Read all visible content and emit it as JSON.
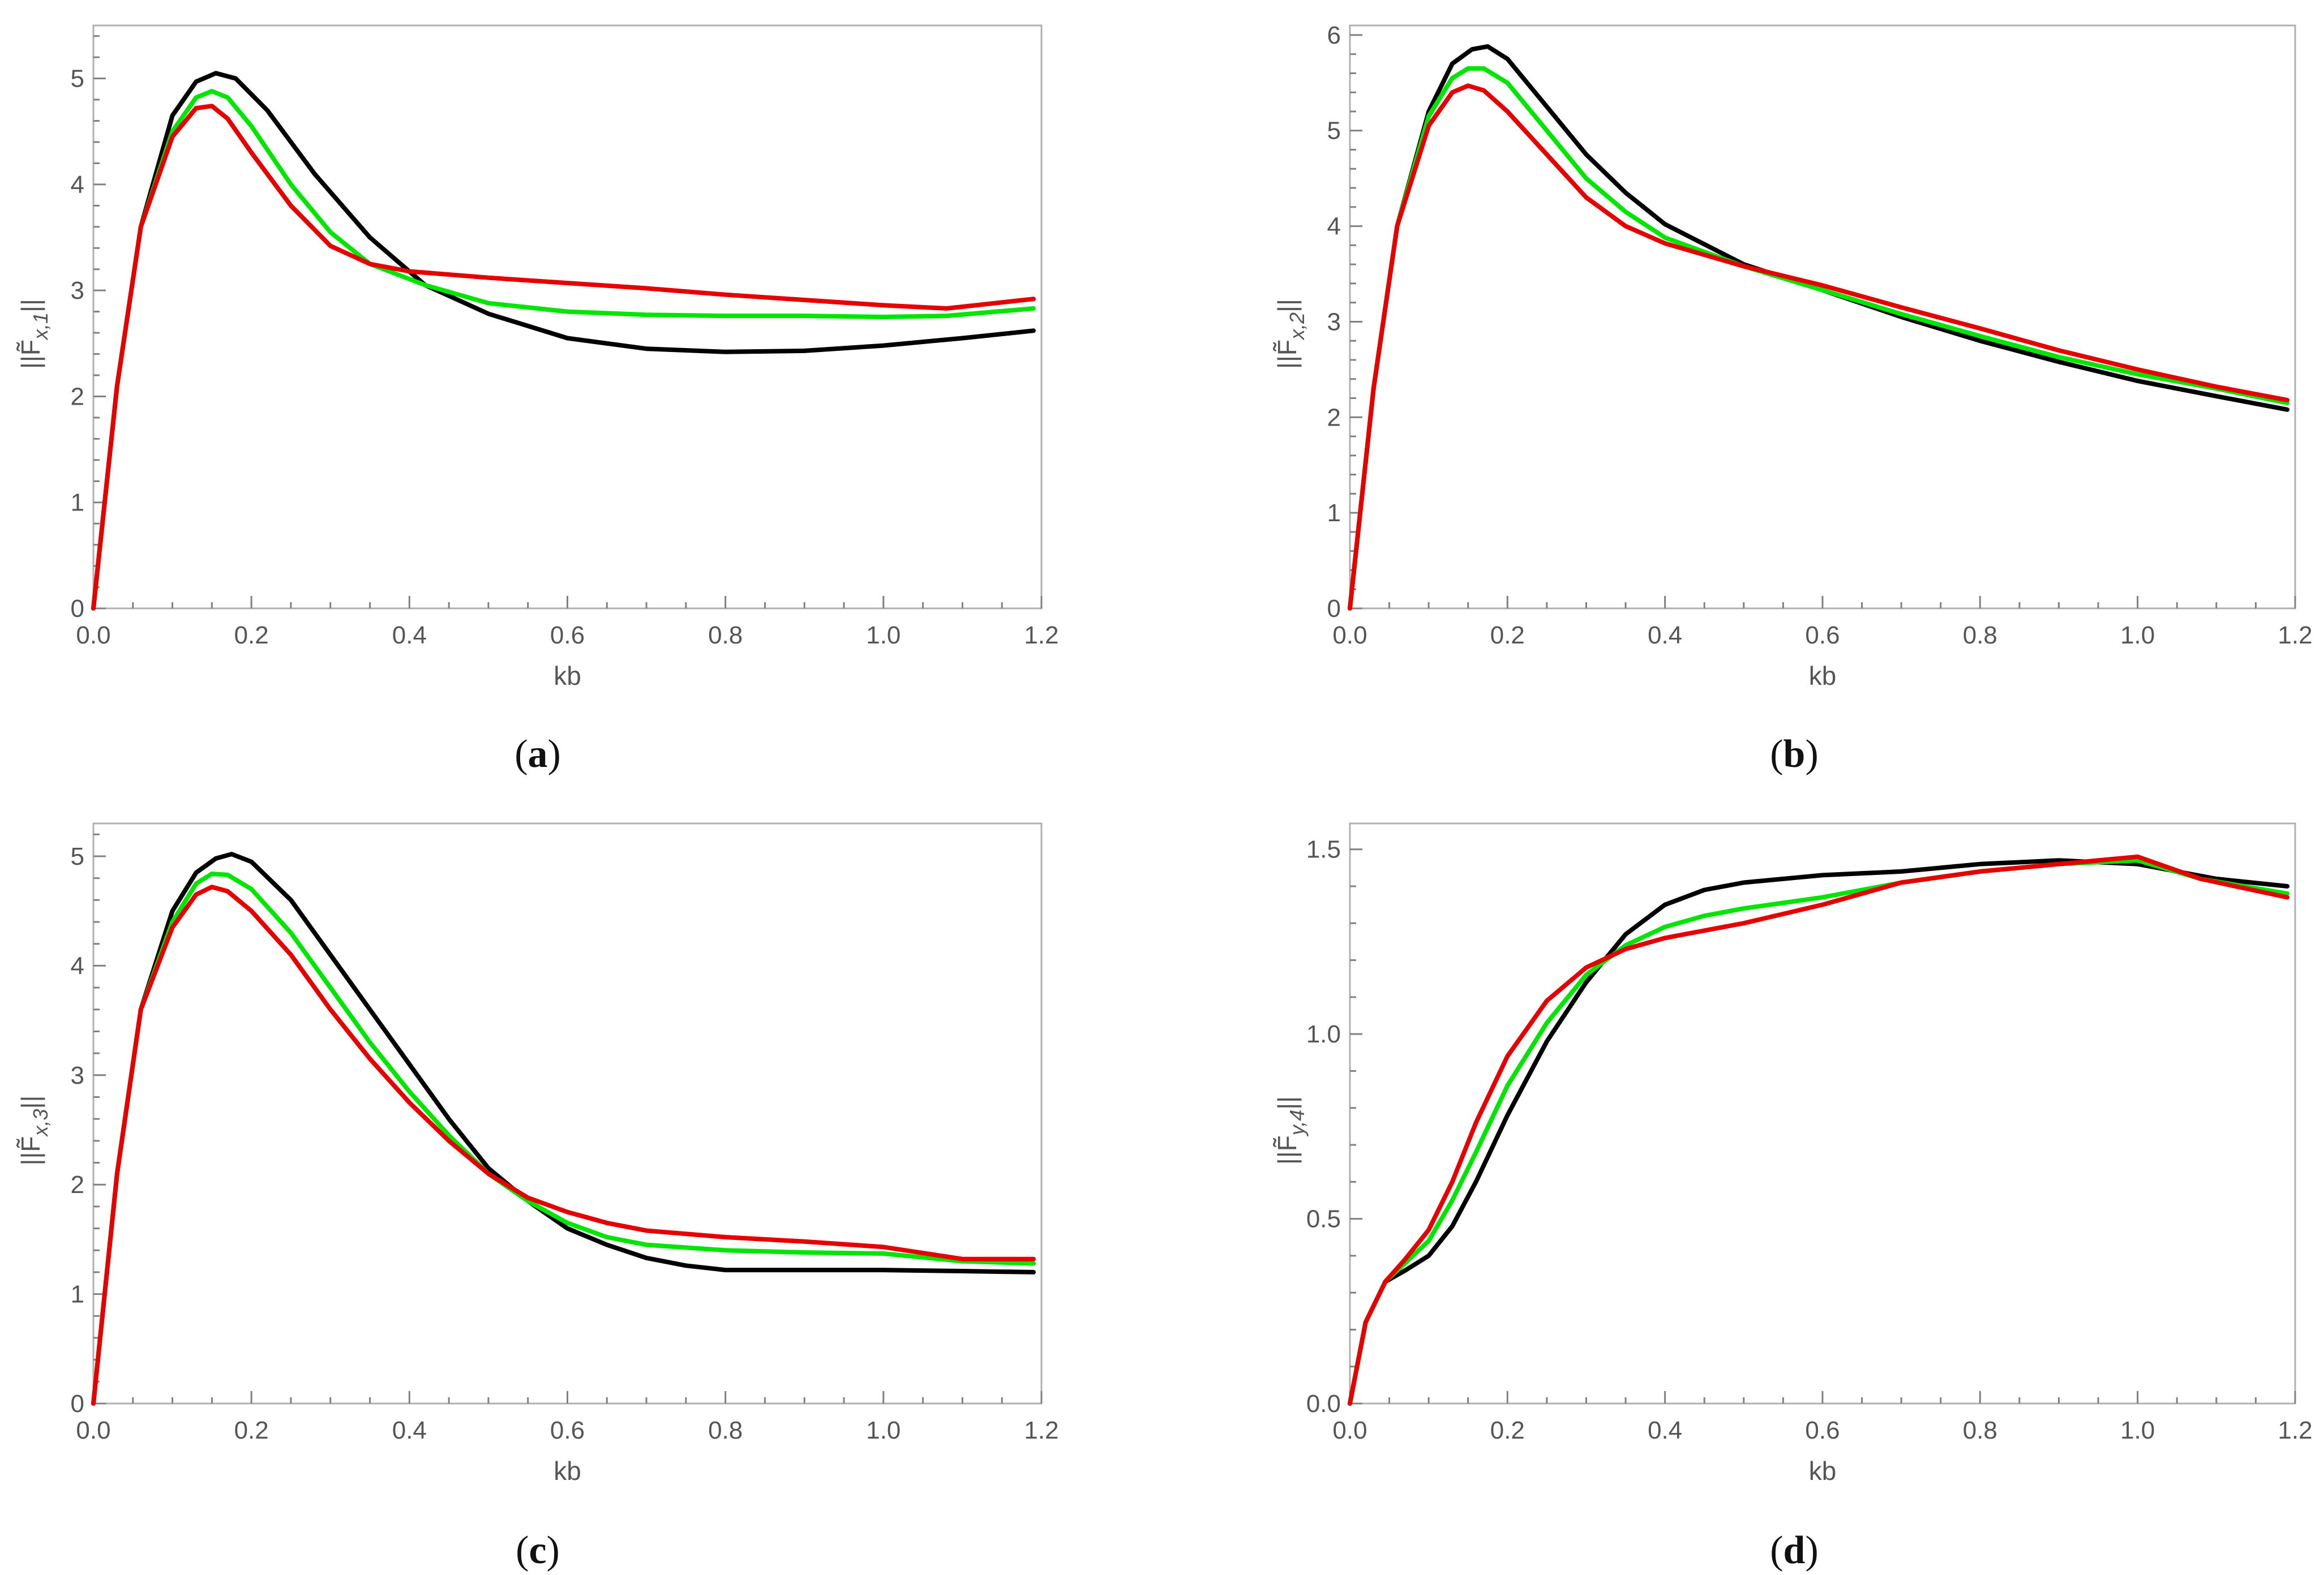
{
  "colors": {
    "black": "#000000",
    "green": "#00e600",
    "red": "#e60000"
  },
  "chart_data": [
    {
      "type": "line",
      "panel_letter": "a",
      "xlabel": "kb",
      "ylabel": "||F̃x,1||",
      "ylabel_main": "||F̃",
      "ylabel_sub": "x,1",
      "ylabel_end": "||",
      "xlim": [
        0,
        1.2
      ],
      "ylim": [
        0,
        5.5
      ],
      "xticks": [
        "0.0",
        "0.2",
        "0.4",
        "0.6",
        "0.8",
        "1.0",
        "1.2"
      ],
      "yticks": [
        "0",
        "1",
        "2",
        "3",
        "4",
        "5"
      ],
      "series": [
        {
          "name": "black",
          "color": "#000000",
          "x": [
            0,
            0.03,
            0.06,
            0.1,
            0.13,
            0.155,
            0.18,
            0.22,
            0.28,
            0.35,
            0.42,
            0.5,
            0.6,
            0.7,
            0.8,
            0.9,
            1.0,
            1.1,
            1.19
          ],
          "y": [
            0,
            2.1,
            3.6,
            4.65,
            4.97,
            5.05,
            5.0,
            4.7,
            4.1,
            3.5,
            3.05,
            2.78,
            2.55,
            2.45,
            2.42,
            2.43,
            2.48,
            2.55,
            2.62
          ]
        },
        {
          "name": "green",
          "color": "#00e600",
          "x": [
            0,
            0.03,
            0.06,
            0.1,
            0.13,
            0.15,
            0.17,
            0.2,
            0.25,
            0.3,
            0.35,
            0.42,
            0.5,
            0.6,
            0.7,
            0.8,
            0.9,
            1.0,
            1.08,
            1.19
          ],
          "y": [
            0,
            2.1,
            3.6,
            4.5,
            4.82,
            4.88,
            4.82,
            4.55,
            4.0,
            3.55,
            3.25,
            3.05,
            2.88,
            2.8,
            2.77,
            2.76,
            2.76,
            2.75,
            2.76,
            2.83
          ]
        },
        {
          "name": "red",
          "color": "#e60000",
          "x": [
            0,
            0.03,
            0.06,
            0.1,
            0.13,
            0.15,
            0.17,
            0.2,
            0.25,
            0.3,
            0.35,
            0.4,
            0.5,
            0.6,
            0.7,
            0.8,
            0.9,
            1.0,
            1.08,
            1.19
          ],
          "y": [
            0,
            2.1,
            3.6,
            4.45,
            4.72,
            4.74,
            4.62,
            4.3,
            3.8,
            3.42,
            3.25,
            3.18,
            3.12,
            3.07,
            3.02,
            2.96,
            2.91,
            2.86,
            2.83,
            2.92
          ]
        }
      ]
    },
    {
      "type": "line",
      "panel_letter": "b",
      "xlabel": "kb",
      "ylabel": "||F̃x,2||",
      "ylabel_main": "||F̃",
      "ylabel_sub": "x,2",
      "ylabel_end": "||",
      "xlim": [
        0,
        1.2
      ],
      "ylim": [
        0,
        6.1
      ],
      "xticks": [
        "0.0",
        "0.2",
        "0.4",
        "0.6",
        "0.8",
        "1.0",
        "1.2"
      ],
      "yticks": [
        "0",
        "1",
        "2",
        "3",
        "4",
        "5",
        "6"
      ],
      "series": [
        {
          "name": "black",
          "color": "#000000",
          "x": [
            0,
            0.03,
            0.06,
            0.1,
            0.13,
            0.155,
            0.175,
            0.2,
            0.25,
            0.3,
            0.35,
            0.4,
            0.5,
            0.6,
            0.7,
            0.8,
            0.9,
            1.0,
            1.1,
            1.19
          ],
          "y": [
            0,
            2.3,
            4.0,
            5.2,
            5.7,
            5.85,
            5.88,
            5.75,
            5.25,
            4.75,
            4.35,
            4.02,
            3.6,
            3.33,
            3.05,
            2.8,
            2.58,
            2.38,
            2.22,
            2.08
          ]
        },
        {
          "name": "green",
          "color": "#00e600",
          "x": [
            0,
            0.03,
            0.06,
            0.1,
            0.13,
            0.15,
            0.17,
            0.2,
            0.25,
            0.3,
            0.35,
            0.4,
            0.5,
            0.6,
            0.7,
            0.8,
            0.9,
            1.0,
            1.1,
            1.19
          ],
          "y": [
            0,
            2.3,
            4.0,
            5.15,
            5.55,
            5.65,
            5.65,
            5.5,
            5.0,
            4.5,
            4.15,
            3.88,
            3.58,
            3.33,
            3.08,
            2.85,
            2.63,
            2.45,
            2.3,
            2.15
          ]
        },
        {
          "name": "red",
          "color": "#e60000",
          "x": [
            0,
            0.03,
            0.06,
            0.1,
            0.13,
            0.15,
            0.17,
            0.2,
            0.25,
            0.3,
            0.35,
            0.4,
            0.5,
            0.6,
            0.7,
            0.8,
            0.9,
            1.0,
            1.1,
            1.19
          ],
          "y": [
            0,
            2.3,
            4.0,
            5.05,
            5.4,
            5.47,
            5.42,
            5.2,
            4.75,
            4.3,
            4.0,
            3.82,
            3.58,
            3.38,
            3.15,
            2.93,
            2.7,
            2.5,
            2.32,
            2.18
          ]
        }
      ]
    },
    {
      "type": "line",
      "panel_letter": "c",
      "xlabel": "kb",
      "ylabel": "||F̃x,3||",
      "ylabel_main": "||F̃",
      "ylabel_sub": "x,3",
      "ylabel_end": "||",
      "xlim": [
        0,
        1.2
      ],
      "ylim": [
        0,
        5.3
      ],
      "xticks": [
        "0.0",
        "0.2",
        "0.4",
        "0.6",
        "0.8",
        "1.0",
        "1.2"
      ],
      "yticks": [
        "0",
        "1",
        "2",
        "3",
        "4",
        "5"
      ],
      "series": [
        {
          "name": "black",
          "color": "#000000",
          "x": [
            0,
            0.03,
            0.06,
            0.1,
            0.13,
            0.155,
            0.175,
            0.2,
            0.25,
            0.3,
            0.35,
            0.4,
            0.45,
            0.5,
            0.55,
            0.6,
            0.65,
            0.7,
            0.75,
            0.8,
            0.9,
            1.0,
            1.1,
            1.19
          ],
          "y": [
            0,
            2.1,
            3.6,
            4.5,
            4.85,
            4.98,
            5.02,
            4.95,
            4.6,
            4.1,
            3.6,
            3.1,
            2.6,
            2.15,
            1.85,
            1.6,
            1.45,
            1.33,
            1.26,
            1.22,
            1.22,
            1.22,
            1.21,
            1.2
          ]
        },
        {
          "name": "green",
          "color": "#00e600",
          "x": [
            0,
            0.03,
            0.06,
            0.1,
            0.13,
            0.15,
            0.17,
            0.2,
            0.25,
            0.3,
            0.35,
            0.4,
            0.45,
            0.5,
            0.55,
            0.6,
            0.65,
            0.7,
            0.8,
            0.9,
            1.0,
            1.1,
            1.19
          ],
          "y": [
            0,
            2.1,
            3.6,
            4.4,
            4.75,
            4.84,
            4.83,
            4.7,
            4.3,
            3.8,
            3.3,
            2.85,
            2.45,
            2.1,
            1.85,
            1.65,
            1.52,
            1.45,
            1.4,
            1.38,
            1.37,
            1.3,
            1.28
          ]
        },
        {
          "name": "red",
          "color": "#e60000",
          "x": [
            0,
            0.03,
            0.06,
            0.1,
            0.13,
            0.15,
            0.17,
            0.2,
            0.25,
            0.3,
            0.35,
            0.4,
            0.45,
            0.5,
            0.55,
            0.6,
            0.65,
            0.7,
            0.8,
            0.9,
            1.0,
            1.1,
            1.19
          ],
          "y": [
            0,
            2.1,
            3.6,
            4.35,
            4.65,
            4.72,
            4.68,
            4.5,
            4.1,
            3.6,
            3.15,
            2.75,
            2.4,
            2.1,
            1.88,
            1.75,
            1.65,
            1.58,
            1.52,
            1.48,
            1.43,
            1.32,
            1.32
          ]
        }
      ]
    },
    {
      "type": "line",
      "panel_letter": "d",
      "xlabel": "kb",
      "ylabel": "||F̃y,4||",
      "ylabel_main": "||F̃",
      "ylabel_sub": "y,4",
      "ylabel_end": "||",
      "xlim": [
        0,
        1.2
      ],
      "ylim": [
        0,
        1.57
      ],
      "xticks": [
        "0.0",
        "0.2",
        "0.4",
        "0.6",
        "0.8",
        "1.0",
        "1.2"
      ],
      "yticks": [
        "0.0",
        "0.5",
        "1.0",
        "1.5"
      ],
      "series": [
        {
          "name": "black",
          "color": "#000000",
          "x": [
            0,
            0.02,
            0.045,
            0.07,
            0.1,
            0.13,
            0.16,
            0.2,
            0.25,
            0.3,
            0.35,
            0.4,
            0.45,
            0.5,
            0.6,
            0.7,
            0.8,
            0.9,
            1.0,
            1.1,
            1.19
          ],
          "y": [
            0,
            0.22,
            0.33,
            0.36,
            0.4,
            0.48,
            0.6,
            0.78,
            0.98,
            1.14,
            1.27,
            1.35,
            1.39,
            1.41,
            1.43,
            1.44,
            1.46,
            1.47,
            1.46,
            1.42,
            1.4
          ]
        },
        {
          "name": "green",
          "color": "#00e600",
          "x": [
            0,
            0.02,
            0.045,
            0.07,
            0.1,
            0.13,
            0.16,
            0.2,
            0.25,
            0.3,
            0.35,
            0.4,
            0.45,
            0.5,
            0.6,
            0.7,
            0.8,
            0.9,
            1.0,
            1.08,
            1.19
          ],
          "y": [
            0,
            0.22,
            0.33,
            0.38,
            0.44,
            0.55,
            0.68,
            0.86,
            1.03,
            1.16,
            1.24,
            1.29,
            1.32,
            1.34,
            1.37,
            1.41,
            1.44,
            1.46,
            1.47,
            1.42,
            1.38
          ]
        },
        {
          "name": "red",
          "color": "#e60000",
          "x": [
            0,
            0.02,
            0.045,
            0.07,
            0.1,
            0.13,
            0.16,
            0.2,
            0.25,
            0.3,
            0.35,
            0.4,
            0.45,
            0.5,
            0.6,
            0.7,
            0.8,
            0.9,
            1.0,
            1.08,
            1.19
          ],
          "y": [
            0,
            0.22,
            0.33,
            0.39,
            0.47,
            0.6,
            0.76,
            0.94,
            1.09,
            1.18,
            1.23,
            1.26,
            1.28,
            1.3,
            1.35,
            1.41,
            1.44,
            1.46,
            1.48,
            1.42,
            1.37
          ]
        }
      ]
    }
  ]
}
